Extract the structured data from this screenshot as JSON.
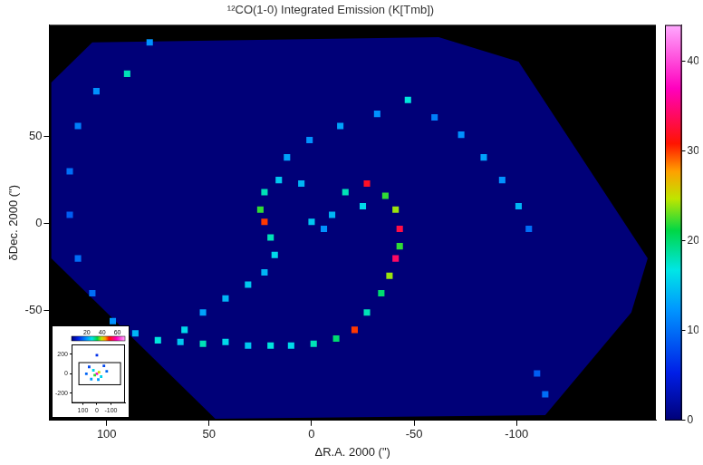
{
  "chart_data": [
    {
      "type": "scatter",
      "title": "¹²CO(1-0) Integrated Emission (K[Tmb])",
      "x_label": "ΔR.A. 2000 (\")",
      "y_label": "δDec. 2000 (\")",
      "xlim": [
        128,
        -168
      ],
      "ylim": [
        -113,
        114
      ],
      "xticks": [
        100,
        50,
        0,
        -50,
        -100
      ],
      "yticks": [
        50,
        0,
        -50
      ],
      "grid": false,
      "x": [
        -16.5,
        -27,
        -36,
        -41,
        -43,
        -43,
        -41,
        -38,
        -34,
        -27,
        -21,
        -12,
        -1,
        10,
        20,
        31,
        42,
        53,
        64,
        75,
        86,
        97,
        107,
        114,
        118,
        118,
        114,
        105,
        90,
        79,
        5,
        16,
        23,
        25,
        23,
        20,
        18,
        23,
        31,
        42,
        53,
        62,
        12,
        1,
        -14,
        -32,
        -47,
        -60,
        -73,
        -84,
        -93,
        -101,
        -106,
        -110,
        -114,
        -10,
        -6,
        0,
        -25
      ],
      "y": [
        18,
        23,
        16,
        8,
        -3,
        -13,
        -20,
        -30,
        -40,
        -51,
        -61,
        -66,
        -69,
        -70,
        -70,
        -70,
        -68,
        -69,
        -68,
        -67,
        -63,
        -56,
        -40,
        -20,
        5,
        30,
        56,
        76,
        86,
        104,
        23,
        25,
        18,
        8,
        1,
        -8,
        -18,
        -28,
        -35,
        -43,
        -51,
        -61,
        38,
        48,
        56,
        63,
        71,
        61,
        51,
        38,
        25,
        10,
        -3,
        -86,
        -98,
        5,
        -3,
        1,
        10
      ],
      "values": [
        18,
        32,
        22,
        24,
        33,
        22,
        34,
        24,
        20,
        18,
        30,
        20,
        18,
        16,
        17,
        15,
        16,
        18,
        15,
        17,
        14,
        12,
        10,
        10,
        9,
        10,
        11,
        12,
        18,
        12,
        14,
        15,
        18,
        22,
        30,
        18,
        16,
        14,
        15,
        14,
        13,
        16,
        13,
        12,
        13,
        12,
        17,
        11,
        12,
        13,
        12,
        14,
        10,
        9,
        10,
        14,
        12,
        15,
        16
      ],
      "map_outline": {
        "x": [
          127,
          107,
          -62,
          -101,
          -164,
          -156,
          -114,
          47,
          127
        ],
        "y": [
          81,
          104,
          107,
          93,
          -20,
          -51,
          -110,
          -112,
          -20
        ]
      },
      "colorbar": {
        "range": [
          0,
          44
        ],
        "ticks": [
          0,
          10,
          20,
          30,
          40
        ]
      }
    },
    {
      "type": "scatter",
      "xlim": [
        180,
        -200
      ],
      "ylim": [
        -300,
        300
      ],
      "xticks": [
        100,
        0,
        -100
      ],
      "yticks": [
        200,
        0,
        -200
      ],
      "grid": false,
      "x": [
        0,
        -15,
        15,
        -30,
        25,
        -10,
        40,
        75,
        -70,
        55,
        -50,
        0
      ],
      "y": [
        0,
        15,
        -15,
        -30,
        35,
        -60,
        -55,
        0,
        25,
        70,
        80,
        190
      ],
      "values": [
        60,
        40,
        35,
        25,
        25,
        20,
        20,
        15,
        15,
        12,
        12,
        10
      ],
      "field_box": {
        "x": [
          128,
          -168
        ],
        "y": [
          -113,
          114
        ]
      },
      "colorbar": {
        "range": [
          0,
          70
        ],
        "ticks": [
          20,
          40,
          60
        ]
      }
    }
  ]
}
